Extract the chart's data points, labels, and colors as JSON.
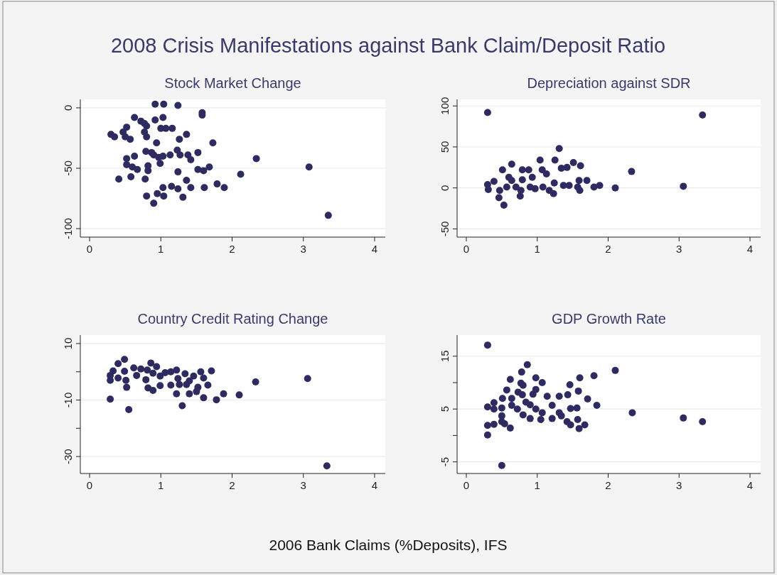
{
  "chart_data": [
    {
      "type": "scatter",
      "title": "Stock Market Change",
      "xlim": [
        -0.13,
        4.15
      ],
      "xticks": [
        0,
        1,
        2,
        3,
        4
      ],
      "ylim": [
        -107,
        7
      ],
      "yticks": [
        -100,
        -50,
        0
      ],
      "grid": "y",
      "marker": "circle",
      "x": [
        0.92,
        1.04,
        1.24,
        1.58,
        1.58,
        0.63,
        0.72,
        0.92,
        1.03,
        0.77,
        0.8,
        1.0,
        1.07,
        1.16,
        0.52,
        0.47,
        0.3,
        0.35,
        0.5,
        0.57,
        0.77,
        0.8,
        1.36,
        1.26,
        0.94,
        1.73,
        1.23,
        0.79,
        0.87,
        0.9,
        0.97,
        1.03,
        1.13,
        1.27,
        1.38,
        1.52,
        1.42,
        2.34,
        0.63,
        0.52,
        0.52,
        0.6,
        0.67,
        0.82,
        0.82,
        0.99,
        1.24,
        1.52,
        1.6,
        1.68,
        3.08,
        2.12,
        0.41,
        0.58,
        0.78,
        1.36,
        1.15,
        1.24,
        1.42,
        1.03,
        1.61,
        1.79,
        1.89,
        0.8,
        0.95,
        1.04,
        1.31,
        0.9,
        3.35
      ],
      "series": [
        {
          "color": "#2d2b5f",
          "values": [
            3,
            3,
            2,
            -4,
            -6,
            -8,
            -11,
            -10,
            -8,
            -13,
            -15,
            -17,
            -17,
            -17,
            -16,
            -20,
            -22,
            -24,
            -24,
            -26,
            -20,
            -24,
            -22,
            -26,
            -29,
            -29,
            -35,
            -36,
            -37,
            -39,
            -41,
            -40,
            -39,
            -39,
            -39,
            -37,
            -43,
            -42,
            -40,
            -42,
            -47,
            -49,
            -51,
            -48,
            -52,
            -46,
            -53,
            -51,
            -52,
            -49,
            -49,
            -55,
            -59,
            -57,
            -59,
            -60,
            -65,
            -67,
            -66,
            -66,
            -66,
            -63,
            -66,
            -73,
            -71,
            -73,
            -74,
            -79,
            -89
          ]
        }
      ]
    },
    {
      "type": "scatter",
      "title": "Depreciation against SDR",
      "xlim": [
        -0.13,
        4.15
      ],
      "xticks": [
        0,
        1,
        2,
        3,
        4
      ],
      "ylim": [
        -60,
        108
      ],
      "yticks": [
        -50,
        0,
        50,
        100
      ],
      "grid": "y",
      "marker": "circle",
      "x": [
        0.3,
        3.33,
        1.31,
        1.04,
        1.25,
        1.51,
        1.61,
        0.64,
        1.34,
        1.42,
        2.33,
        0.51,
        0.79,
        0.88,
        1.07,
        1.13,
        0.93,
        0.6,
        0.39,
        0.3,
        0.31,
        0.47,
        0.57,
        0.64,
        0.7,
        0.79,
        0.77,
        0.9,
        0.97,
        1.08,
        1.17,
        1.23,
        0.76,
        1.24,
        1.37,
        1.45,
        1.57,
        1.59,
        1.7,
        1.6,
        1.8,
        1.88,
        2.1,
        3.06,
        0.46,
        0.53
      ],
      "series": [
        {
          "color": "#2d2b5f",
          "values": [
            92,
            89,
            48,
            34,
            34,
            31,
            27,
            29,
            24,
            25,
            20,
            22,
            22,
            22,
            22,
            17,
            13,
            13,
            8,
            4,
            -2,
            -3,
            1,
            9,
            1,
            10,
            -3,
            1,
            -1,
            1,
            -3,
            -7,
            -10,
            6,
            3,
            3,
            1,
            9,
            9,
            -3,
            1,
            3,
            0,
            2,
            -12,
            -21
          ]
        }
      ]
    },
    {
      "type": "scatter",
      "title": "Country Credit Rating Change",
      "xlim": [
        -0.13,
        4.15
      ],
      "xticks": [
        0,
        1,
        2,
        3,
        4
      ],
      "ylim": [
        -36,
        13
      ],
      "yticks": [
        {
          "value": -30,
          "label": "-30"
        },
        {
          "value": -20,
          "label": null
        },
        {
          "value": -10,
          "label": "-10"
        },
        {
          "value": 0,
          "label": null
        },
        {
          "value": 10,
          "label": "10"
        }
      ],
      "grid": "y",
      "marker": "circle",
      "x": [
        0.49,
        0.4,
        0.33,
        0.29,
        0.29,
        0.4,
        0.51,
        0.52,
        0.29,
        0.55,
        0.62,
        0.72,
        0.81,
        0.66,
        0.86,
        0.94,
        0.89,
        0.79,
        0.82,
        0.89,
        0.99,
        0.99,
        1.06,
        1.14,
        1.22,
        1.24,
        1.26,
        1.14,
        1.34,
        1.36,
        1.46,
        1.4,
        1.52,
        1.5,
        1.4,
        1.22,
        1.56,
        1.6,
        1.66,
        1.71,
        1.6,
        1.78,
        1.88,
        2.1,
        2.33,
        3.06,
        1.3,
        3.33,
        0.49
      ],
      "series": [
        {
          "color": "#2d2b5f",
          "values": [
            4.4,
            2.9,
            0.3,
            -1.3,
            -3,
            -2.2,
            -3,
            -5.5,
            -9.7,
            -13.4,
            1.4,
            1,
            0.6,
            -1.3,
            3.1,
            1.8,
            -0.5,
            -2.8,
            -5.7,
            -6.6,
            -1.5,
            -4.9,
            -0.3,
            0,
            0.6,
            -2.4,
            -4.5,
            -4.7,
            -0.7,
            -4.5,
            -1.5,
            -3.2,
            -5.5,
            -7,
            -7.8,
            -7.8,
            0,
            -2.2,
            -4.7,
            0.3,
            -9.2,
            -9.9,
            -7.8,
            -8.2,
            -3.6,
            -2.4,
            -12,
            -33.3,
            0.2
          ]
        }
      ]
    },
    {
      "type": "scatter",
      "title": "GDP Growth Rate",
      "xlim": [
        -0.13,
        4.15
      ],
      "xticks": [
        0,
        1,
        2,
        3,
        4
      ],
      "ylim": [
        -7.2,
        19
      ],
      "yticks": [
        {
          "value": -5,
          "label": "-5"
        },
        {
          "value": 0,
          "label": null
        },
        {
          "value": 5,
          "label": "5"
        },
        {
          "value": 10,
          "label": null
        },
        {
          "value": 15,
          "label": "15"
        }
      ],
      "grid": "y",
      "marker": "circle",
      "x": [
        0.3,
        0.86,
        0.78,
        2.1,
        0.62,
        0.98,
        1.07,
        0.77,
        0.8,
        1.46,
        1.6,
        1.8,
        0.57,
        0.98,
        0.73,
        0.79,
        0.94,
        1.14,
        1.31,
        1.43,
        1.58,
        1.71,
        0.51,
        0.64,
        0.39,
        0.3,
        0.39,
        0.5,
        0.64,
        0.72,
        0.84,
        0.9,
        0.98,
        1.07,
        0.8,
        0.9,
        1.05,
        1.21,
        1.31,
        1.21,
        1.34,
        1.47,
        1.56,
        1.42,
        1.47,
        1.57,
        1.59,
        1.67,
        1.84,
        2.34,
        3.06,
        3.33,
        0.5,
        0.5,
        0.39,
        0.3,
        0.54,
        0.62,
        0.3,
        0.5
      ],
      "series": [
        {
          "color": "#2d2b5f",
          "values": [
            17.1,
            13.4,
            12,
            12.3,
            10.6,
            10.9,
            10,
            9.9,
            9.5,
            9.6,
            10.9,
            11.3,
            8.6,
            8.7,
            8.2,
            7.7,
            7.8,
            7.4,
            7.4,
            7.7,
            8.4,
            6.9,
            7,
            7,
            6.2,
            5.4,
            5,
            5.2,
            5.7,
            5,
            6.3,
            5.8,
            5,
            4.3,
            3.9,
            3.2,
            3,
            5.7,
            4.3,
            3.2,
            3.7,
            5.1,
            5.2,
            2.6,
            2,
            3,
            1.3,
            2,
            5.7,
            4.3,
            3.3,
            2.6,
            3.7,
            2.6,
            2.1,
            1.9,
            2.2,
            1.4,
            0.1,
            -5.7
          ]
        }
      ]
    },
    {
      "type": "other",
      "title": "2008 Crisis Manifestations against Bank Claim/Deposit Ratio",
      "xlabel": "2006 Bank Claims (%Deposits), IFS"
    }
  ]
}
